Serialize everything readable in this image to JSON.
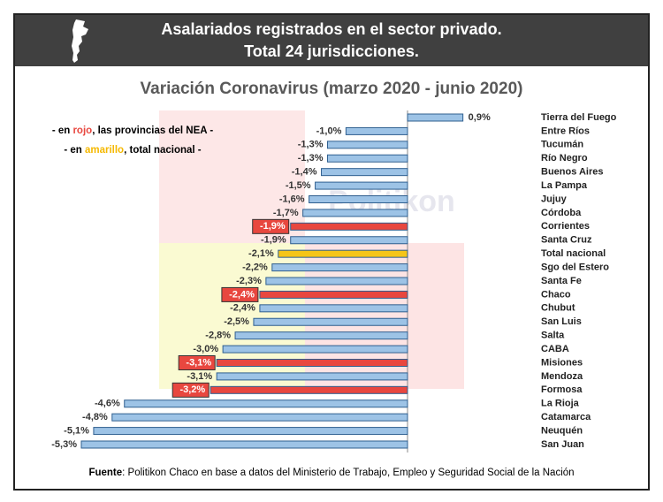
{
  "chart_data": {
    "type": "hbar",
    "title": [
      "Asalariados registrados en el sector privado.",
      "Total 24 jurisdicciones."
    ],
    "subtitle": "Variación Coronavirus (marzo 2020 - junio 2020)",
    "watermark": "Politikon",
    "legend_notes": [
      [
        "- en ",
        "rojo",
        ", las provincias del NEA -"
      ],
      [
        "- en ",
        "amarillo",
        ", total nacional -"
      ]
    ],
    "legend_note_colors": [
      "#e8473f",
      "#f5b800"
    ],
    "source_label": "Fuente",
    "source": ": Politikon Chaco en base a datos del Ministerio de Trabajo, Empleo y Seguridad Social de la Nación",
    "categories": [
      "Tierra del Fuego",
      "Entre Ríos",
      "Tucumán",
      "Río Negro",
      "Buenos Aires",
      "La Pampa",
      "Jujuy",
      "Córdoba",
      "Corrientes",
      "Santa Cruz",
      "Total nacional",
      "Sgo del Estero",
      "Santa Fe",
      "Chaco",
      "Chubut",
      "San Luis",
      "Salta",
      "CABA",
      "Misiones",
      "Mendoza",
      "Formosa",
      "La Rioja",
      "Catamarca",
      "Neuquén",
      "San Juan"
    ],
    "values": [
      0.9,
      -1.0,
      -1.3,
      -1.3,
      -1.4,
      -1.5,
      -1.6,
      -1.7,
      -1.9,
      -1.9,
      -2.1,
      -2.2,
      -2.3,
      -2.4,
      -2.4,
      -2.5,
      -2.8,
      -3.0,
      -3.1,
      -3.1,
      -3.2,
      -4.6,
      -4.8,
      -5.1,
      -5.3
    ],
    "value_labels": [
      "0,9%",
      "-1,0%",
      "-1,3%",
      "-1,3%",
      "-1,4%",
      "-1,5%",
      "-1,6%",
      "-1,7%",
      "-1,9%",
      "-1,9%",
      "-2,1%",
      "-2,2%",
      "-2,3%",
      "-2,4%",
      "-2,4%",
      "-2,5%",
      "-2,8%",
      "-3,0%",
      "-3,1%",
      "-3,1%",
      "-3,2%",
      "-4,6%",
      "-4,8%",
      "-5,1%",
      "-5,3%"
    ],
    "colors": [
      "#9dc3e6",
      "#9dc3e6",
      "#9dc3e6",
      "#9dc3e6",
      "#9dc3e6",
      "#9dc3e6",
      "#9dc3e6",
      "#9dc3e6",
      "#e8473f",
      "#9dc3e6",
      "#f5c518",
      "#9dc3e6",
      "#9dc3e6",
      "#e8473f",
      "#9dc3e6",
      "#9dc3e6",
      "#9dc3e6",
      "#9dc3e6",
      "#e8473f",
      "#9dc3e6",
      "#e8473f",
      "#9dc3e6",
      "#9dc3e6",
      "#9dc3e6",
      "#9dc3e6"
    ]
  }
}
